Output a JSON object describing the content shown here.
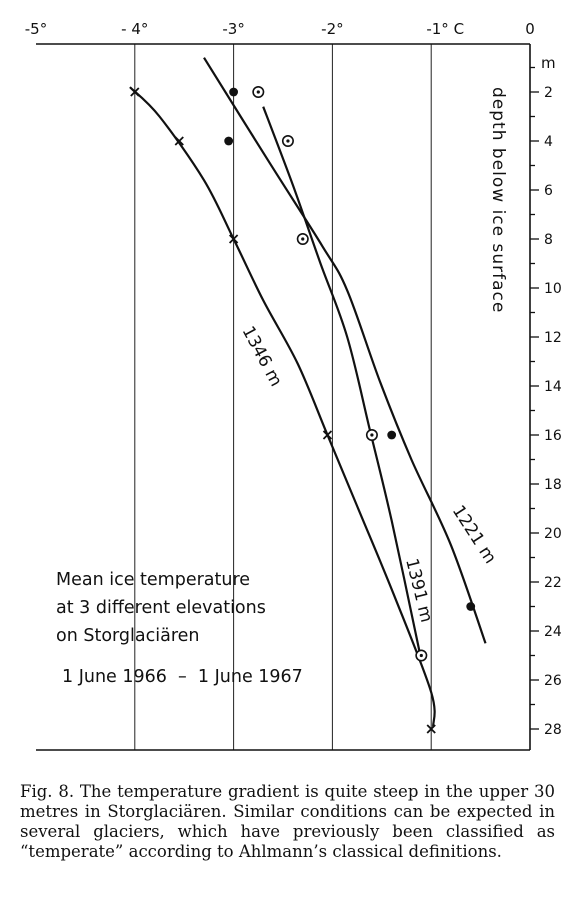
{
  "chart_data": {
    "type": "scatter",
    "title_lines": [
      "Mean ice temperature",
      "at 3 different elevations",
      "on Storglaciären"
    ],
    "period": "1 June 1966  –  1 June 1967",
    "x_axis": {
      "range": [
        -5,
        0
      ],
      "ticks": [
        -5,
        -4,
        -3,
        -2,
        -1,
        0
      ],
      "tick_labels": [
        "-5°",
        "- 4°",
        "-3°",
        "-2°",
        "-1° C",
        "0"
      ],
      "position": "top"
    },
    "y_axis": {
      "label": "depth below ice surface",
      "unit": "m",
      "range": [
        0,
        29
      ],
      "inverted": true,
      "ticks": [
        2,
        4,
        6,
        8,
        10,
        12,
        14,
        16,
        18,
        20,
        22,
        24,
        26,
        28
      ],
      "tick_labels": [
        "2",
        "4",
        "6",
        "8",
        "10",
        "12",
        "14",
        "16",
        "18",
        "20",
        "22",
        "24",
        "26",
        "28"
      ],
      "position": "right"
    },
    "grid": "vertical lines at whole degrees",
    "series": [
      {
        "name": "1346 m",
        "marker": "cross",
        "points": [
          [
            -4.0,
            2
          ],
          [
            -3.55,
            4
          ],
          [
            -3.0,
            8
          ],
          [
            -2.05,
            16
          ],
          [
            -1.0,
            28
          ]
        ],
        "curve": [
          [
            -4.05,
            1.8
          ],
          [
            -3.75,
            3.0
          ],
          [
            -3.3,
            5.6
          ],
          [
            -3.0,
            8
          ],
          [
            -2.7,
            10.5
          ],
          [
            -2.35,
            13.1
          ],
          [
            -2.05,
            16
          ],
          [
            -1.75,
            18.9
          ],
          [
            -1.38,
            22.5
          ],
          [
            -1.0,
            26.5
          ],
          [
            -0.98,
            27.9
          ]
        ]
      },
      {
        "name": "1391 m",
        "marker": "circle-dot",
        "points": [
          [
            -2.75,
            2
          ],
          [
            -2.45,
            4
          ],
          [
            -2.3,
            8
          ],
          [
            -1.6,
            16
          ],
          [
            -1.1,
            25
          ]
        ],
        "curve": [
          [
            -2.7,
            2.6
          ],
          [
            -2.4,
            5.8
          ],
          [
            -2.12,
            9.0
          ],
          [
            -1.85,
            12.0
          ],
          [
            -1.62,
            15.8
          ],
          [
            -1.4,
            19.5
          ],
          [
            -1.12,
            24.8
          ]
        ]
      },
      {
        "name": "1221 m",
        "marker": "filled-dot",
        "points": [
          [
            -3.0,
            2
          ],
          [
            -3.05,
            4
          ],
          [
            -1.4,
            16
          ],
          [
            -0.6,
            23
          ]
        ],
        "curve": [
          [
            -3.3,
            0.6
          ],
          [
            -2.65,
            4.8
          ],
          [
            -2.1,
            8.3
          ],
          [
            -1.85,
            10.1
          ],
          [
            -1.52,
            13.8
          ],
          [
            -1.2,
            17.0
          ],
          [
            -0.8,
            20.5
          ],
          [
            -0.45,
            24.5
          ]
        ]
      }
    ],
    "series_labels": [
      "1346 m",
      "1391 m",
      "1221 m"
    ]
  },
  "caption": "Fig. 8. The temperature gradient is quite steep in the upper 30 metres in Storglaciären. Similar conditions can be expected in several glaciers, which have previously been classified as “temperate” according to Ahlmann’s classical definitions."
}
